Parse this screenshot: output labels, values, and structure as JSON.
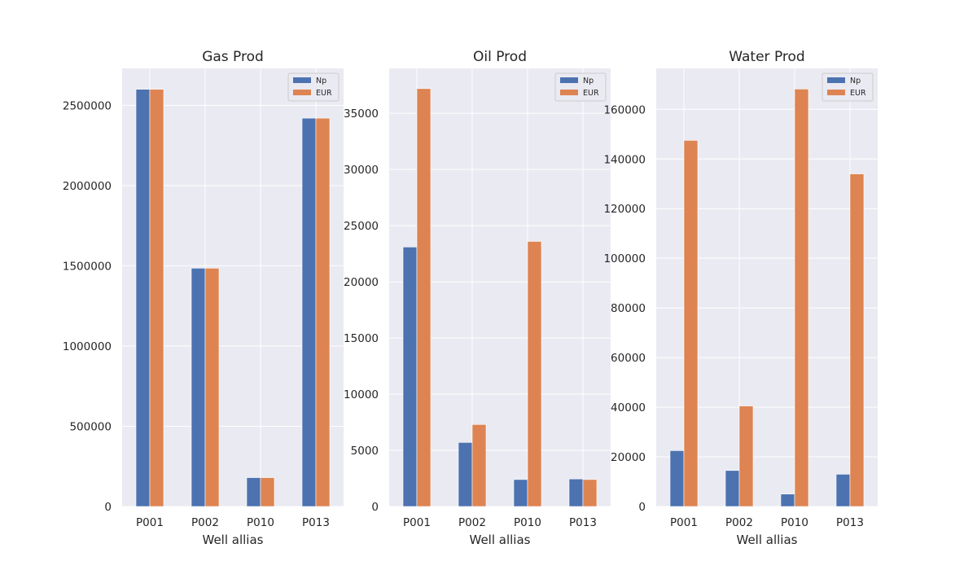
{
  "chart_data": [
    {
      "type": "bar",
      "title": "Gas Prod",
      "xlabel": "Well allias",
      "ylabel": "",
      "categories": [
        "P001",
        "P002",
        "P010",
        "P013"
      ],
      "series": [
        {
          "name": "Np",
          "values": [
            2600000,
            1485000,
            180000,
            2420000
          ]
        },
        {
          "name": "EUR",
          "values": [
            2600000,
            1485000,
            180000,
            2420000
          ]
        }
      ],
      "ylim": [
        0,
        2730000
      ],
      "yticks": [
        0,
        500000,
        1000000,
        1500000,
        2000000,
        2500000
      ],
      "ytick_labels": [
        "0",
        "500000",
        "1000000",
        "1500000",
        "2000000",
        "2500000"
      ],
      "legend": "top-right"
    },
    {
      "type": "bar",
      "title": "Oil Prod",
      "xlabel": "Well allias",
      "ylabel": "",
      "categories": [
        "P001",
        "P002",
        "P010",
        "P013"
      ],
      "series": [
        {
          "name": "Np",
          "values": [
            23100,
            5700,
            2400,
            2450
          ]
        },
        {
          "name": "EUR",
          "values": [
            37200,
            7300,
            23600,
            2400
          ]
        }
      ],
      "ylim": [
        0,
        39000
      ],
      "yticks": [
        0,
        5000,
        10000,
        15000,
        20000,
        25000,
        30000,
        35000
      ],
      "ytick_labels": [
        "0",
        "5000",
        "10000",
        "15000",
        "20000",
        "25000",
        "30000",
        "35000"
      ],
      "legend": "top-right"
    },
    {
      "type": "bar",
      "title": "Water Prod",
      "xlabel": "Well allias",
      "ylabel": "",
      "categories": [
        "P001",
        "P002",
        "P010",
        "P013"
      ],
      "series": [
        {
          "name": "Np",
          "values": [
            22500,
            14500,
            5000,
            13000
          ]
        },
        {
          "name": "EUR",
          "values": [
            147500,
            40500,
            168200,
            134000
          ]
        }
      ],
      "ylim": [
        0,
        176500
      ],
      "yticks": [
        0,
        20000,
        40000,
        60000,
        80000,
        100000,
        120000,
        140000,
        160000
      ],
      "ytick_labels": [
        "0",
        "20000",
        "40000",
        "60000",
        "80000",
        "100000",
        "120000",
        "140000",
        "160000"
      ],
      "legend": "top-right"
    }
  ],
  "colors": {
    "Np": "#4c72b0",
    "EUR": "#dd8452"
  }
}
